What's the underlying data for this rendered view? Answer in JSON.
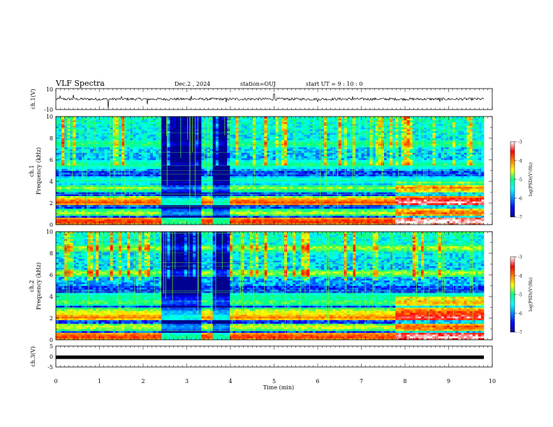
{
  "header": {
    "title": "VLF Spectra",
    "date": "Dec.2 , 2024",
    "station": "station=OUJ",
    "start": "start UT =  9 : 10 : 0"
  },
  "chart_data": [
    {
      "id": "ch1_waveform",
      "type": "line",
      "ylabel": "ch.1(V)",
      "ylim": [
        -10,
        10
      ],
      "yticks": [
        "10",
        "-10"
      ],
      "xlim": [
        0,
        10
      ],
      "baseline": 0,
      "noise_amplitude": 1.2,
      "spikes": [
        {
          "t": 0.1,
          "v": 3
        },
        {
          "t": 0.4,
          "v": 4
        },
        {
          "t": 1.2,
          "v": -9
        },
        {
          "t": 1.5,
          "v": 2.5
        },
        {
          "t": 2.1,
          "v": -5
        },
        {
          "t": 3.1,
          "v": 3
        },
        {
          "t": 3.9,
          "v": -3
        },
        {
          "t": 5.0,
          "v": 5
        },
        {
          "t": 6.0,
          "v": -2.5
        },
        {
          "t": 6.8,
          "v": 2.5
        },
        {
          "t": 8.8,
          "v": -2.5
        }
      ]
    },
    {
      "id": "ch1_spectrogram",
      "type": "heatmap",
      "ylabel_line1": "ch.1",
      "ylabel_line2": "Frequency (kHz)",
      "ylim": [
        0,
        10
      ],
      "yticks": [
        "0",
        "2",
        "4",
        "6",
        "8",
        "10"
      ],
      "xlim": [
        0,
        9.85
      ],
      "colorbar": {
        "label": "log(PSD)(V²/Hz)",
        "range": [
          -7,
          -3
        ],
        "ticks": [
          "-3",
          "-4",
          "-5",
          "-6",
          "-7"
        ]
      },
      "quiet_intervals": [
        [
          2.4,
          3.3
        ],
        [
          3.55,
          4.0
        ]
      ],
      "bands_kHz": [
        {
          "f": 0.3,
          "level": -3.6
        },
        {
          "f": 1.1,
          "level": -4.6
        },
        {
          "f": 2.1,
          "level": -3.8
        },
        {
          "f": 2.35,
          "level": -4.4
        },
        {
          "f": 3.4,
          "level": -4.7
        },
        {
          "f": 4.1,
          "level": -5.2
        },
        {
          "f": 5.6,
          "level": -5.0
        },
        {
          "f": 7.5,
          "level": -4.9
        }
      ]
    },
    {
      "id": "ch2_spectrogram",
      "type": "heatmap",
      "ylabel_line1": "ch.2",
      "ylabel_line2": "Frequency (kHz)",
      "ylim": [
        0,
        10
      ],
      "yticks": [
        "0",
        "2",
        "4",
        "6",
        "8",
        "10"
      ],
      "xlim": [
        0,
        9.85
      ],
      "colorbar": {
        "label": "log(PSD)(V²/Hz)",
        "range": [
          -7,
          -3
        ],
        "ticks": [
          "-3",
          "-4",
          "-5",
          "-6",
          "-7"
        ]
      },
      "quiet_intervals": [
        [
          2.4,
          3.3
        ],
        [
          3.55,
          4.0
        ]
      ],
      "bands_kHz": [
        {
          "f": 0.3,
          "level": -3.7
        },
        {
          "f": 1.2,
          "level": -4.5
        },
        {
          "f": 2.1,
          "level": -4.0
        },
        {
          "f": 2.6,
          "level": -4.5
        },
        {
          "f": 3.5,
          "level": -4.8
        },
        {
          "f": 4.0,
          "level": -5.0
        },
        {
          "f": 6.2,
          "level": -4.6
        },
        {
          "f": 8.5,
          "level": -4.6
        }
      ]
    },
    {
      "id": "ch3_waveform",
      "type": "line",
      "ylabel": "ch.3(V)",
      "ylim": [
        -5,
        5
      ],
      "yticks": [
        "5",
        "0",
        "-5"
      ],
      "xlim": [
        0,
        9.85
      ],
      "baseline": 0,
      "noise_amplitude": 0.3
    }
  ],
  "time_axis": {
    "label": "Time (min)",
    "range": [
      0,
      10
    ],
    "ticks": [
      "0",
      "1",
      "2",
      "3",
      "4",
      "5",
      "6",
      "7",
      "8",
      "9",
      "10"
    ]
  }
}
